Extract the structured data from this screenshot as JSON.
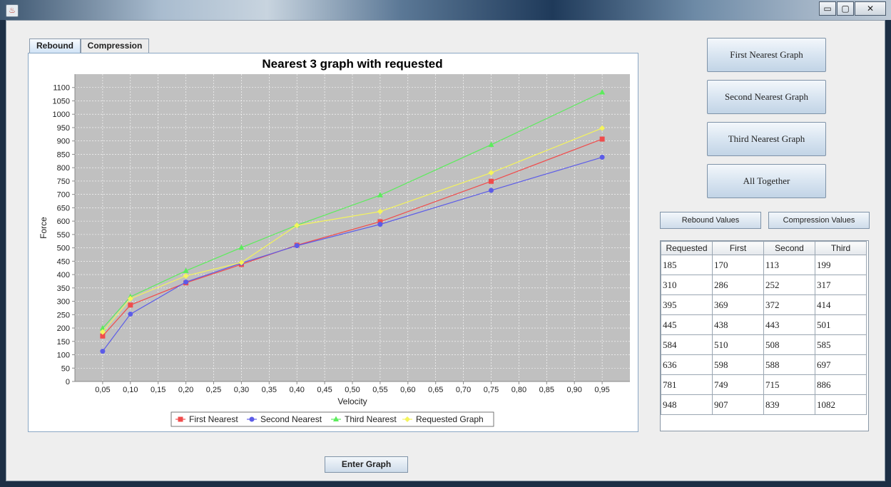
{
  "window": {
    "minimize_glyph": "▭",
    "maximize_glyph": "▢",
    "close_glyph": "✕"
  },
  "tabs": [
    {
      "label": "Rebound",
      "active": true
    },
    {
      "label": "Compression",
      "active": false
    }
  ],
  "side_buttons": {
    "first": "First Nearest Graph",
    "second": "Second Nearest Graph",
    "third": "Third Nearest Graph",
    "all": "All Together"
  },
  "value_buttons": {
    "rebound": "Rebound Values",
    "compression": "Compression Values"
  },
  "enter_button": "Enter Graph",
  "table": {
    "headers": [
      "Requested",
      "First",
      "Second",
      "Third"
    ],
    "rows": [
      [
        "185",
        "170",
        "113",
        "199"
      ],
      [
        "310",
        "286",
        "252",
        "317"
      ],
      [
        "395",
        "369",
        "372",
        "414"
      ],
      [
        "445",
        "438",
        "443",
        "501"
      ],
      [
        "584",
        "510",
        "508",
        "585"
      ],
      [
        "636",
        "598",
        "588",
        "697"
      ],
      [
        "781",
        "749",
        "715",
        "886"
      ],
      [
        "948",
        "907",
        "839",
        "1082"
      ]
    ]
  },
  "chart_data": {
    "type": "line",
    "title": "Nearest 3 graph with requested",
    "xlabel": "Velocity",
    "ylabel": "Force",
    "xlim": [
      0.0,
      1.0
    ],
    "ylim": [
      0,
      1150
    ],
    "x_ticks": [
      "0,05",
      "0,10",
      "0,15",
      "0,20",
      "0,25",
      "0,30",
      "0,35",
      "0,40",
      "0,45",
      "0,50",
      "0,55",
      "0,60",
      "0,65",
      "0,70",
      "0,75",
      "0,80",
      "0,85",
      "0,90",
      "0,95"
    ],
    "x_tick_values": [
      0.05,
      0.1,
      0.15,
      0.2,
      0.25,
      0.3,
      0.35,
      0.4,
      0.45,
      0.5,
      0.55,
      0.6,
      0.65,
      0.7,
      0.75,
      0.8,
      0.85,
      0.9,
      0.95
    ],
    "y_ticks": [
      "0",
      "50",
      "100",
      "150",
      "200",
      "250",
      "300",
      "350",
      "400",
      "450",
      "500",
      "550",
      "600",
      "650",
      "700",
      "750",
      "800",
      "850",
      "900",
      "950",
      "1000",
      "1050",
      "1100"
    ],
    "y_tick_values": [
      0,
      50,
      100,
      150,
      200,
      250,
      300,
      350,
      400,
      450,
      500,
      550,
      600,
      650,
      700,
      750,
      800,
      850,
      900,
      950,
      1000,
      1050,
      1100
    ],
    "x": [
      0.05,
      0.1,
      0.2,
      0.3,
      0.4,
      0.55,
      0.75,
      0.95
    ],
    "series": [
      {
        "name": "First Nearest",
        "color": "#f04c4c",
        "marker": "square",
        "values": [
          170,
          286,
          369,
          438,
          510,
          598,
          749,
          907
        ]
      },
      {
        "name": "Second Nearest",
        "color": "#5c5ce8",
        "marker": "circle",
        "values": [
          113,
          252,
          372,
          443,
          508,
          588,
          715,
          839
        ]
      },
      {
        "name": "Third Nearest",
        "color": "#5cec5c",
        "marker": "triangle",
        "values": [
          199,
          317,
          414,
          501,
          585,
          697,
          886,
          1082
        ]
      },
      {
        "name": "Requested Graph",
        "color": "#f4f45c",
        "marker": "diamond",
        "values": [
          185,
          310,
          395,
          445,
          584,
          636,
          781,
          948
        ]
      }
    ],
    "grid": true,
    "plot_background": "#c0c0c0",
    "legend_position": "bottom"
  }
}
